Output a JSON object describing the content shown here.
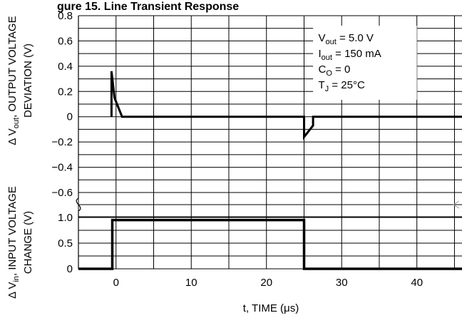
{
  "chart_data": [
    {
      "type": "line",
      "title": "gure 15. Line Transient Response",
      "ylabel_prefix": "Δ V",
      "ylabel_sub": "out",
      "ylabel_suffix": ", OUTPUT VOLTAGE",
      "ylabel_line2": "DEVIATION (V)",
      "ylim": [
        -0.6,
        0.8
      ],
      "yticks": [
        0.8,
        0.6,
        0.4,
        0.2,
        0,
        -0.2,
        -0.4,
        -0.6
      ],
      "ytick_labels": [
        "0.8",
        "0.6",
        "0.4",
        "0.2",
        "0",
        "−0.2",
        "−0.4",
        "−0.6"
      ],
      "grid": true,
      "series": [
        {
          "x": [
            -0.6,
            -0.6,
            -0.2,
            0.8,
            2,
            25,
            25,
            26.2,
            26.2,
            46
          ],
          "y": [
            0,
            0.36,
            0.15,
            0.0,
            0,
            0,
            -0.16,
            -0.07,
            0,
            0
          ]
        }
      ]
    },
    {
      "type": "line",
      "ylabel_prefix": "Δ V",
      "ylabel_sub": "in",
      "ylabel_suffix": ", INPUT VOLTAGE",
      "ylabel_line2": "CHANGE (V)",
      "ylim": [
        0,
        1.0
      ],
      "yticks": [
        1.0,
        0.5,
        0
      ],
      "ytick_labels": [
        "1.0",
        "0.5",
        "0"
      ],
      "xlabel_prefix": "t, TIME (",
      "xlabel_mu": "μ",
      "xlabel_suffix": "s)",
      "xlim": [
        -5,
        46
      ],
      "xticks": [
        0,
        10,
        20,
        30,
        40
      ],
      "xtick_labels": [
        "0",
        "10",
        "20",
        "30",
        "40"
      ],
      "grid": true,
      "series": [
        {
          "x": [
            -5,
            -0.5,
            -0.5,
            25,
            25,
            46
          ],
          "y": [
            0,
            0,
            0.95,
            0.95,
            0,
            0
          ]
        }
      ]
    }
  ],
  "annotations": [
    {
      "main": "V",
      "sub": "out",
      "rest": " = 5.0 V"
    },
    {
      "main": "I",
      "sub": "out",
      "rest": " = 150 mA"
    },
    {
      "main": "C",
      "sub": "O",
      "rest": " = 0"
    },
    {
      "main": "T",
      "sub": "J",
      "rest": " = 25°C"
    }
  ]
}
